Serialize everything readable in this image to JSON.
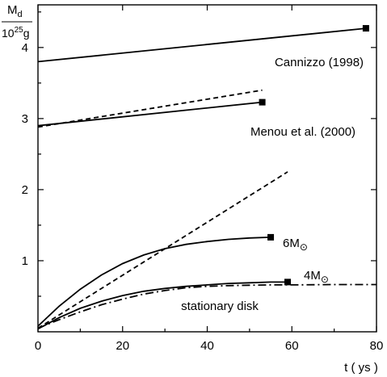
{
  "chart_data": {
    "type": "line",
    "ylabel": {
      "main": "M",
      "main_sub": "d",
      "unit_prefix": "10",
      "unit_sup": "25",
      "unit_suffix": "g"
    },
    "xlabel": "t ( ys )",
    "xlim": [
      0,
      80
    ],
    "ylim": [
      0,
      4.6
    ],
    "x_ticks": [
      "0",
      "20",
      "40",
      "60",
      "80"
    ],
    "y_ticks": [
      "1",
      "2",
      "3",
      "4"
    ],
    "y_tick_values": [
      1,
      2,
      3,
      4
    ],
    "x_tick_values": [
      0,
      20,
      40,
      60,
      80
    ],
    "grid": false,
    "series": [
      {
        "name": "Cannizzo (1998)",
        "style": "solid",
        "marker_end": true,
        "points": [
          [
            0,
            3.8
          ],
          [
            77.5,
            4.27
          ]
        ]
      },
      {
        "name": "Menou et al. (2000)",
        "style": "solid",
        "marker_end": true,
        "points": [
          [
            0,
            2.9
          ],
          [
            53,
            3.23
          ]
        ]
      },
      {
        "name": "",
        "style": "dashed",
        "marker_end": false,
        "points": [
          [
            0,
            2.88
          ],
          [
            53,
            3.4
          ]
        ]
      },
      {
        "name": "",
        "style": "dashed",
        "marker_end": false,
        "points": [
          [
            0,
            0.05
          ],
          [
            59,
            2.25
          ]
        ]
      },
      {
        "name": "6M⊙",
        "style": "solid",
        "marker_end": true,
        "points": [
          [
            0,
            0.08
          ],
          [
            5,
            0.36
          ],
          [
            10,
            0.6
          ],
          [
            15,
            0.8
          ],
          [
            20,
            0.96
          ],
          [
            25,
            1.08
          ],
          [
            30,
            1.17
          ],
          [
            35,
            1.23
          ],
          [
            40,
            1.27
          ],
          [
            45,
            1.3
          ],
          [
            50,
            1.32
          ],
          [
            55,
            1.33
          ]
        ]
      },
      {
        "name": "4M⊙",
        "style": "solid",
        "marker_end": true,
        "points": [
          [
            0,
            0.04
          ],
          [
            5,
            0.2
          ],
          [
            10,
            0.33
          ],
          [
            15,
            0.43
          ],
          [
            20,
            0.51
          ],
          [
            25,
            0.57
          ],
          [
            30,
            0.61
          ],
          [
            35,
            0.64
          ],
          [
            40,
            0.66
          ],
          [
            45,
            0.68
          ],
          [
            50,
            0.69
          ],
          [
            55,
            0.7
          ],
          [
            59,
            0.7
          ]
        ]
      },
      {
        "name": "stationary disk",
        "style": "dashdot",
        "marker_end": false,
        "points": [
          [
            0,
            0.05
          ],
          [
            5,
            0.17
          ],
          [
            10,
            0.28
          ],
          [
            15,
            0.38
          ],
          [
            20,
            0.46
          ],
          [
            25,
            0.53
          ],
          [
            30,
            0.58
          ],
          [
            35,
            0.62
          ],
          [
            40,
            0.64
          ],
          [
            45,
            0.65
          ],
          [
            50,
            0.655
          ],
          [
            55,
            0.66
          ],
          [
            60,
            0.66
          ],
          [
            70,
            0.665
          ],
          [
            80,
            0.665
          ]
        ]
      }
    ]
  }
}
